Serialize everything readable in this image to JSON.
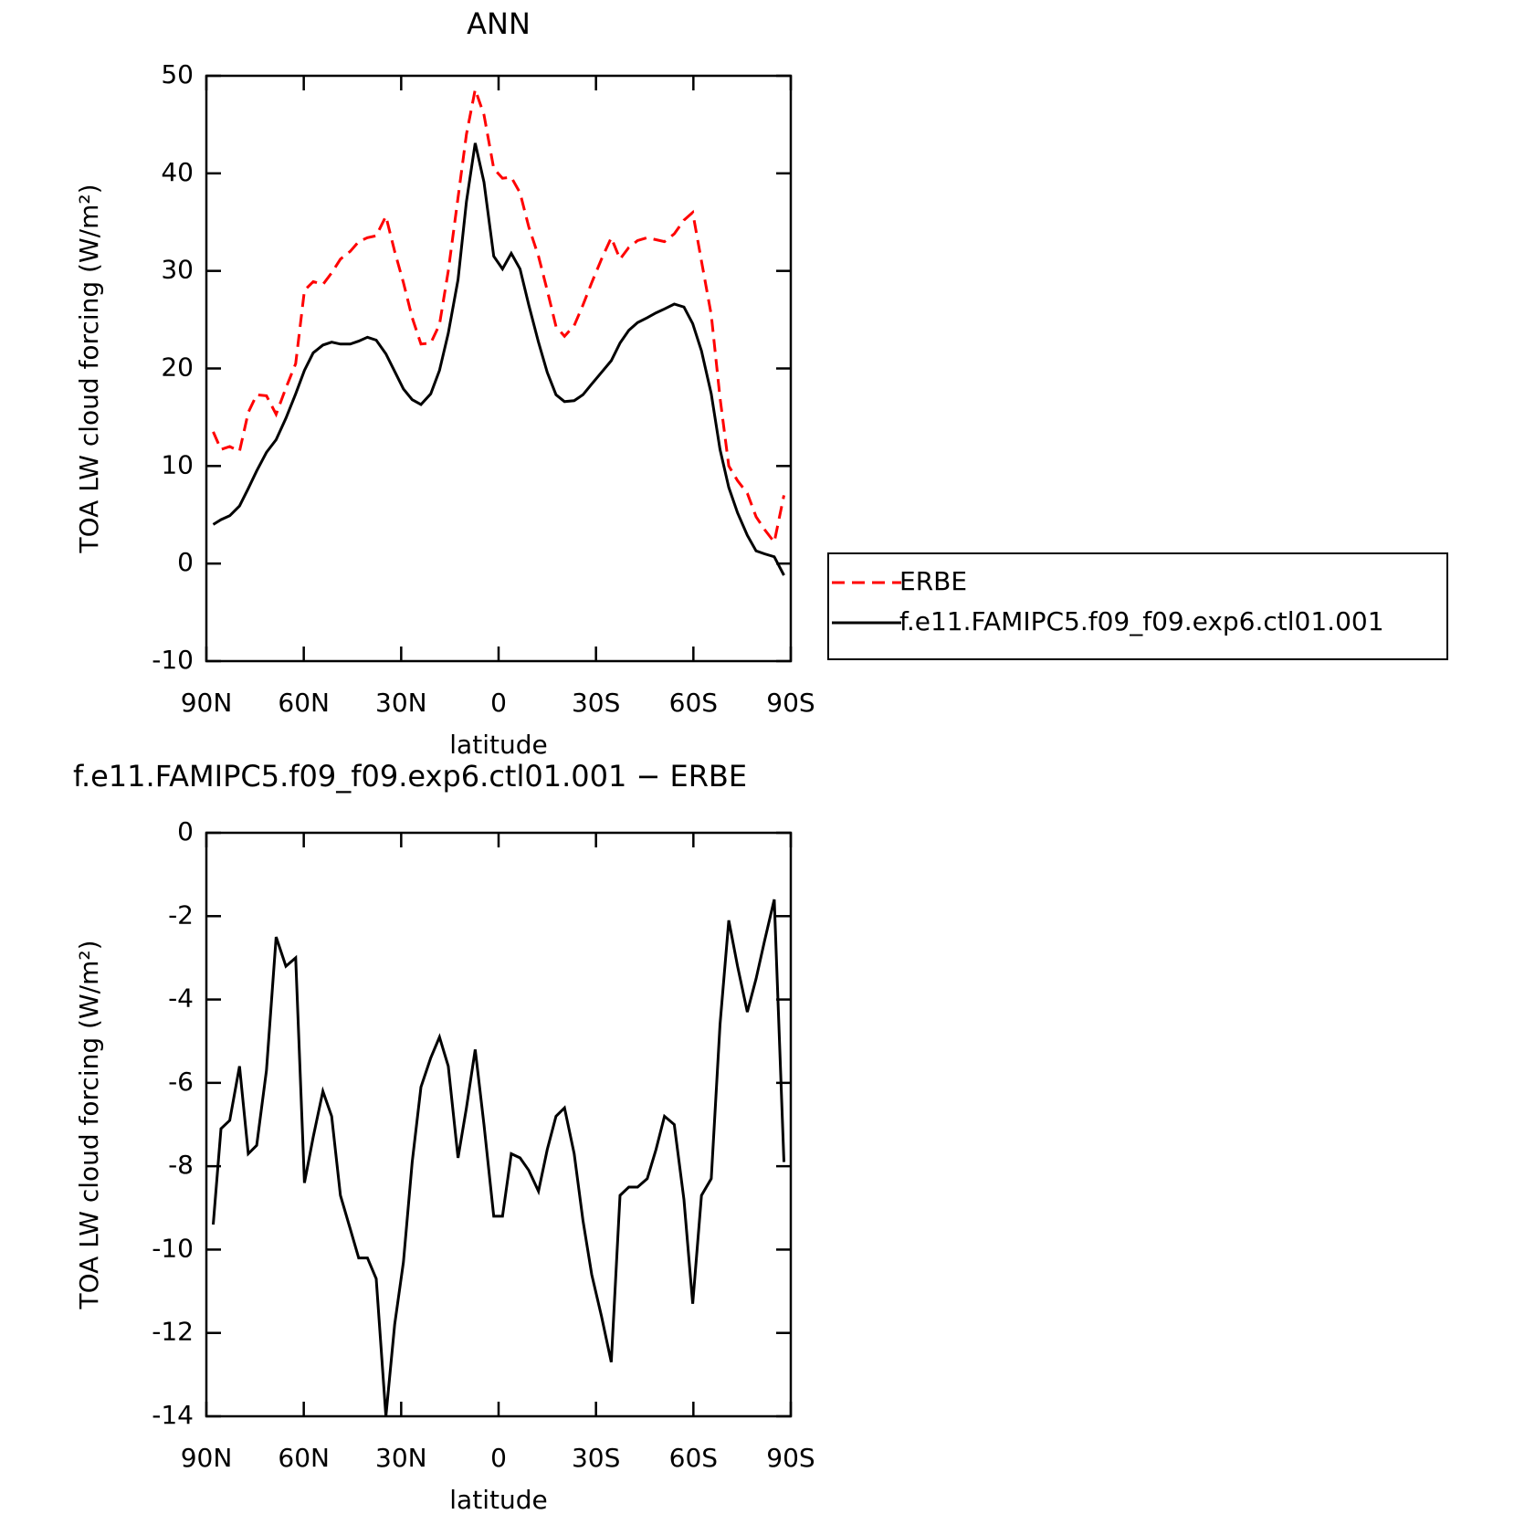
{
  "chart_data": [
    {
      "type": "line",
      "title": "ANN",
      "xlabel": "latitude",
      "ylabel": "TOA LW cloud forcing (W/m²)",
      "x": [
        87.9,
        85.5,
        82.8,
        79.8,
        77.1,
        74.5,
        71.5,
        68.5,
        65.5,
        62.5,
        59.8,
        57.1,
        54.1,
        51.4,
        48.7,
        45.7,
        43.1,
        40.4,
        37.7,
        34.7,
        32.0,
        29.3,
        26.6,
        23.9,
        20.9,
        18.2,
        15.5,
        12.5,
        9.9,
        7.2,
        4.5,
        1.5,
        -1.2,
        -3.9,
        -6.6,
        -9.3,
        -12.3,
        -15.0,
        -17.7,
        -20.3,
        -23.3,
        -26.0,
        -28.7,
        -31.7,
        -34.7,
        -37.4,
        -40.1,
        -42.8,
        -45.8,
        -48.5,
        -51.1,
        -54.1,
        -57.1,
        -59.8,
        -62.5,
        -65.5,
        -68.2,
        -70.9,
        -73.6,
        -76.6,
        -79.3,
        -81.9,
        -84.9,
        -87.9
      ],
      "xlim": [
        90,
        -90
      ],
      "xticks": [
        {
          "value": 90,
          "label": "90N"
        },
        {
          "value": 60,
          "label": "60N"
        },
        {
          "value": 30,
          "label": "30N"
        },
        0,
        {
          "value": -30,
          "label": "30S"
        },
        {
          "value": -60,
          "label": "60S"
        },
        {
          "value": -90,
          "label": "90S"
        }
      ],
      "ylim": [
        -10,
        50
      ],
      "yticks": [
        -10,
        0,
        10,
        20,
        30,
        40,
        50
      ],
      "legend": "right",
      "series": [
        {
          "name": "ERBE",
          "color": "#ff0000",
          "dashed": true,
          "values": [
            13.5,
            11.7,
            12.0,
            11.5,
            15.5,
            17.3,
            17.2,
            15.3,
            18.0,
            20.5,
            28.0,
            28.9,
            28.6,
            29.8,
            31.2,
            32.0,
            33.0,
            33.4,
            33.6,
            35.6,
            32.0,
            28.8,
            25.2,
            22.5,
            22.6,
            24.5,
            30.0,
            37.5,
            44.0,
            48.6,
            46.0,
            40.5,
            39.5,
            39.6,
            38.0,
            34.5,
            31.5,
            28.0,
            24.3,
            23.3,
            24.4,
            26.5,
            28.8,
            31.2,
            33.4,
            31.2,
            32.4,
            33.1,
            33.4,
            33.2,
            33.0,
            33.8,
            35.2,
            36.0,
            31.0,
            25.5,
            17.0,
            10.0,
            8.5,
            7.2,
            4.8,
            3.5,
            2.2,
            7.0
          ]
        },
        {
          "name": "f.e11.FAMIPC5.f09_f09.exp6.ctl01.001",
          "color": "#000000",
          "dashed": false,
          "values": [
            4.0,
            4.5,
            4.9,
            5.9,
            7.7,
            9.5,
            11.4,
            12.7,
            14.9,
            17.4,
            19.8,
            21.6,
            22.4,
            22.7,
            22.5,
            22.5,
            22.8,
            23.2,
            22.9,
            21.5,
            19.7,
            17.9,
            16.8,
            16.3,
            17.4,
            19.8,
            23.6,
            29.1,
            37.1,
            43.1,
            39.1,
            31.5,
            30.2,
            31.8,
            30.2,
            26.5,
            22.7,
            19.6,
            17.3,
            16.6,
            16.7,
            17.3,
            18.4,
            19.6,
            20.8,
            22.6,
            23.9,
            24.7,
            25.2,
            25.7,
            26.1,
            26.6,
            26.3,
            24.6,
            21.8,
            17.4,
            11.7,
            7.8,
            5.2,
            2.9,
            1.3,
            1.0,
            0.7,
            -1.2
          ]
        }
      ]
    },
    {
      "type": "line",
      "title": "f.e11.FAMIPC5.f09_f09.exp6.ctl01.001 − ERBE",
      "xlabel": "latitude",
      "ylabel": "TOA LW cloud forcing (W/m²)",
      "x": [
        87.9,
        85.5,
        82.8,
        79.8,
        77.1,
        74.5,
        71.5,
        68.5,
        65.5,
        62.5,
        59.8,
        57.1,
        54.1,
        51.4,
        48.7,
        45.7,
        43.1,
        40.4,
        37.7,
        34.7,
        32.0,
        29.3,
        26.6,
        23.9,
        20.9,
        18.2,
        15.5,
        12.5,
        9.9,
        7.2,
        4.5,
        1.5,
        -1.2,
        -3.9,
        -6.6,
        -9.3,
        -12.3,
        -15.0,
        -17.7,
        -20.3,
        -23.3,
        -26.0,
        -28.7,
        -31.7,
        -34.7,
        -37.4,
        -40.1,
        -42.8,
        -45.8,
        -48.5,
        -51.1,
        -54.1,
        -57.1,
        -59.8,
        -62.5,
        -65.5,
        -68.2,
        -70.9,
        -73.6,
        -76.6,
        -79.3,
        -81.9,
        -84.9,
        -87.9
      ],
      "xlim": [
        90,
        -90
      ],
      "xticks": [
        {
          "value": 90,
          "label": "90N"
        },
        {
          "value": 60,
          "label": "60N"
        },
        {
          "value": 30,
          "label": "30N"
        },
        0,
        {
          "value": -30,
          "label": "30S"
        },
        {
          "value": -60,
          "label": "60S"
        },
        {
          "value": -90,
          "label": "90S"
        }
      ],
      "ylim": [
        -14,
        0
      ],
      "yticks": [
        -14,
        -12,
        -10,
        -8,
        -6,
        -4,
        -2,
        0
      ],
      "color": "#000000",
      "values": [
        -9.4,
        -7.1,
        -6.9,
        -5.6,
        -7.7,
        -7.5,
        -5.7,
        -2.5,
        -3.2,
        -3.0,
        -8.4,
        -7.3,
        -6.2,
        -6.8,
        -8.7,
        -9.5,
        -10.2,
        -10.2,
        -10.7,
        -14.0,
        -11.8,
        -10.3,
        -7.9,
        -6.1,
        -5.4,
        -4.9,
        -5.6,
        -7.8,
        -6.6,
        -5.2,
        -7.0,
        -9.2,
        -9.2,
        -7.7,
        -7.8,
        -8.1,
        -8.6,
        -7.6,
        -6.8,
        -6.6,
        -7.7,
        -9.3,
        -10.6,
        -11.6,
        -12.7,
        -8.7,
        -8.5,
        -8.5,
        -8.3,
        -7.6,
        -6.8,
        -7.0,
        -8.8,
        -11.3,
        -8.7,
        -8.3,
        -4.6,
        -2.1,
        -3.2,
        -4.3,
        -3.5,
        -2.6,
        -1.6,
        -7.9
      ]
    }
  ]
}
